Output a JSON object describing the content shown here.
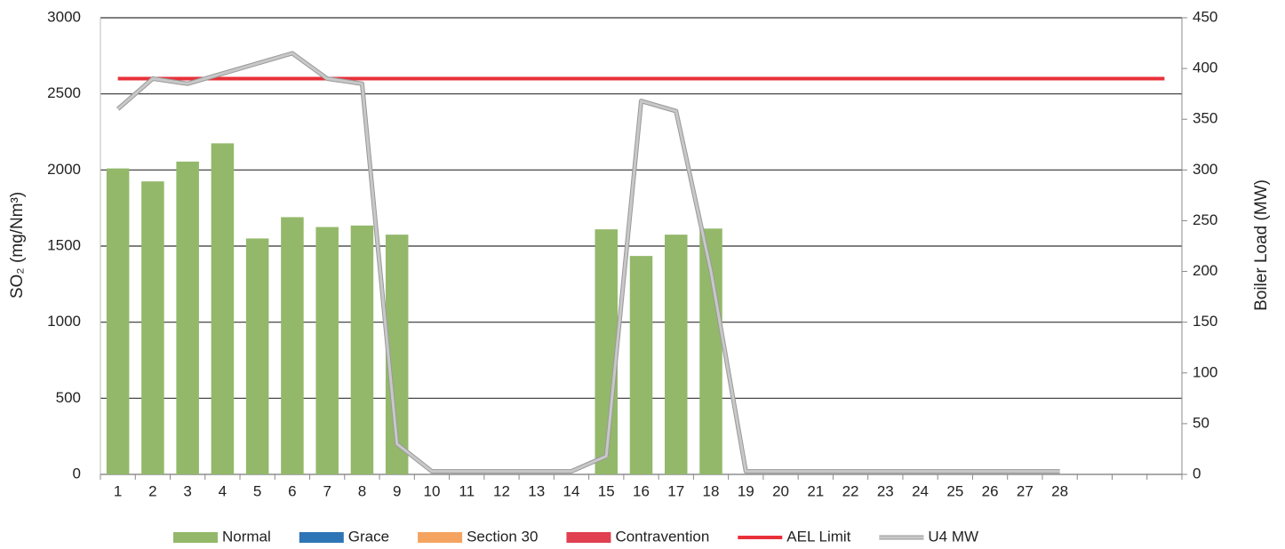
{
  "chart_data": {
    "type": "bar",
    "categories": [
      "1",
      "2",
      "3",
      "4",
      "5",
      "6",
      "7",
      "8",
      "9",
      "10",
      "11",
      "12",
      "13",
      "14",
      "15",
      "16",
      "17",
      "18",
      "19",
      "20",
      "21",
      "22",
      "23",
      "24",
      "25",
      "26",
      "27",
      "28",
      null,
      null,
      null
    ],
    "ylabel": "SO₂ (mg/Nm³)",
    "y2label": "Boiler Load (MW)",
    "ylim": [
      0,
      3000
    ],
    "yticks": [
      0,
      500,
      1000,
      1500,
      2000,
      2500,
      3000
    ],
    "y2lim": [
      0,
      450
    ],
    "y2ticks": [
      0,
      50,
      100,
      150,
      200,
      250,
      300,
      350,
      400,
      450
    ],
    "grid": true,
    "legend": "bottom",
    "series": [
      {
        "name": "Normal",
        "type": "bar",
        "color": "#93b86a",
        "values": [
          2010,
          1925,
          2055,
          2175,
          1550,
          1690,
          1625,
          1635,
          1575,
          null,
          null,
          null,
          null,
          null,
          1610,
          1435,
          1575,
          1615,
          null,
          null,
          null,
          null,
          null,
          null,
          null,
          null,
          null,
          null,
          null,
          null,
          null
        ]
      },
      {
        "name": "Grace",
        "type": "bar",
        "color": "#2e75b6",
        "values": [
          0,
          0,
          0,
          0,
          0,
          0,
          0,
          0,
          0,
          0,
          0,
          0,
          0,
          0,
          0,
          0,
          0,
          0,
          0,
          0,
          0,
          0,
          0,
          0,
          0,
          0,
          0,
          0,
          null,
          null,
          null
        ]
      },
      {
        "name": "Section 30",
        "type": "bar",
        "color": "#f4a460",
        "values": [
          0,
          0,
          0,
          0,
          0,
          0,
          0,
          0,
          0,
          0,
          0,
          0,
          0,
          0,
          0,
          0,
          0,
          0,
          0,
          0,
          0,
          0,
          0,
          0,
          0,
          0,
          0,
          0,
          null,
          null,
          null
        ]
      },
      {
        "name": "Contravention",
        "type": "bar",
        "color": "#e04050",
        "values": [
          0,
          0,
          0,
          0,
          0,
          0,
          0,
          0,
          0,
          0,
          0,
          0,
          0,
          0,
          0,
          0,
          0,
          0,
          0,
          0,
          0,
          0,
          0,
          0,
          0,
          0,
          0,
          0,
          null,
          null,
          null
        ]
      },
      {
        "name": "AEL Limit",
        "type": "line",
        "color": "#e8303a",
        "values": [
          2600,
          2600,
          2600,
          2600,
          2600,
          2600,
          2600,
          2600,
          2600,
          2600,
          2600,
          2600,
          2600,
          2600,
          2600,
          2600,
          2600,
          2600,
          2600,
          2600,
          2600,
          2600,
          2600,
          2600,
          2600,
          2600,
          2600,
          2600,
          2600,
          2600,
          2600
        ]
      },
      {
        "name": "U4 MW",
        "type": "line",
        "axis": "y2",
        "color": "#c8c8c8",
        "values": [
          360,
          390,
          385,
          395,
          405,
          415,
          390,
          385,
          30,
          3,
          3,
          3,
          3,
          3,
          18,
          368,
          358,
          200,
          3,
          3,
          3,
          3,
          3,
          3,
          3,
          3,
          3,
          3,
          null,
          null,
          null
        ]
      }
    ]
  }
}
